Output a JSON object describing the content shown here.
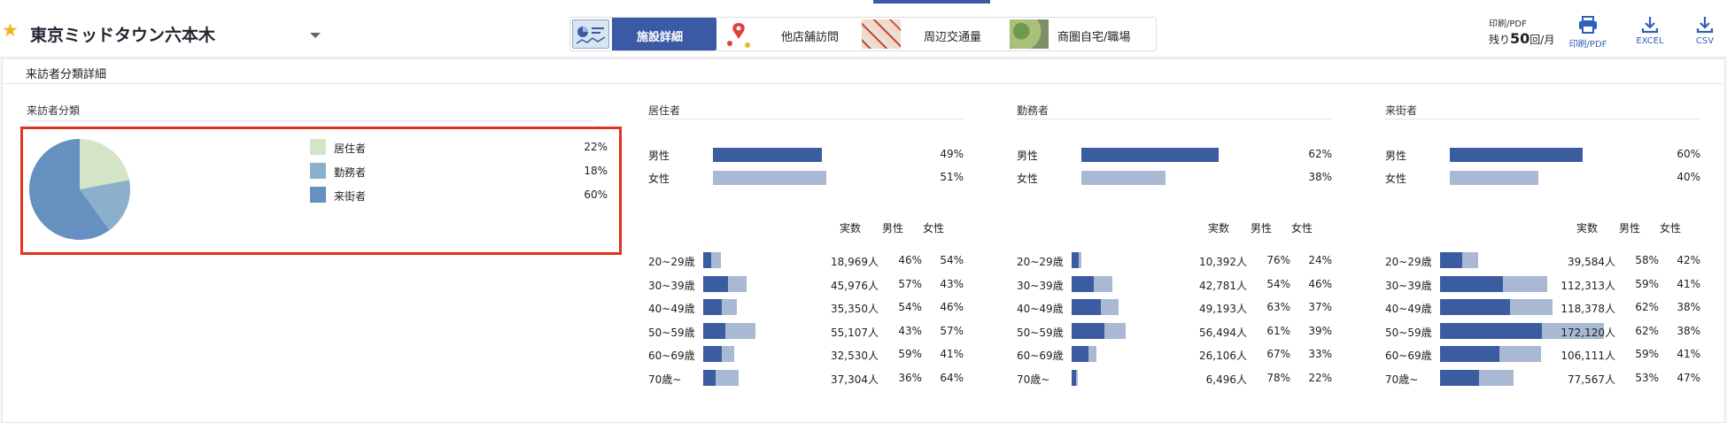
{
  "location": {
    "name": "東京ミッドタウン六本木"
  },
  "tabs": [
    {
      "label": "施設詳細",
      "active": true,
      "icon": "chart-thumbnail-icon"
    },
    {
      "label": "他店舗訪問",
      "active": false,
      "icon": "map-pin-icon"
    },
    {
      "label": "周辺交通量",
      "active": false,
      "icon": "traffic-map-thumbnail-icon"
    },
    {
      "label": "商圏自宅/職場",
      "active": false,
      "icon": "satellite-map-thumbnail-icon"
    }
  ],
  "toolbar": {
    "print_caption": "印刷/PDF",
    "remaining_prefix": "残り",
    "remaining_count": "50",
    "remaining_suffix": "回/月",
    "print_label": "印刷/PDF",
    "excel_label": "EXCEL",
    "csv_label": "CSV"
  },
  "panel": {
    "title": "来訪者分類詳細",
    "classification_title": "来訪者分類"
  },
  "colors": {
    "accent": "#3a5aa5",
    "highlight": "#e0341f",
    "male_bar": "#3b5da0",
    "female_bar": "#a9b8d3"
  },
  "chart_data": {
    "type": "pie",
    "title": "来訪者分類",
    "slices": [
      {
        "label": "居住者",
        "value": 22,
        "pct_label": "22%",
        "color": "#d4e4c6"
      },
      {
        "label": "勤務者",
        "value": 18,
        "pct_label": "18%",
        "color": "#8bb0cb"
      },
      {
        "label": "来街者",
        "value": 60,
        "pct_label": "60%",
        "color": "#6590bf"
      }
    ]
  },
  "groups": [
    {
      "title": "居住者",
      "gender": [
        {
          "label": "男性",
          "value": 49,
          "pct_label": "49%"
        },
        {
          "label": "女性",
          "value": 51,
          "pct_label": "51%"
        }
      ],
      "headers": {
        "count": "実数",
        "male": "男性",
        "female": "女性"
      },
      "ages": [
        {
          "label": "20~29歳",
          "count": "18,969人",
          "count_value": 18969,
          "male": 46,
          "male_label": "46%",
          "female_label": "54%"
        },
        {
          "label": "30~39歳",
          "count": "45,976人",
          "count_value": 45976,
          "male": 57,
          "male_label": "57%",
          "female_label": "43%"
        },
        {
          "label": "40~49歳",
          "count": "35,350人",
          "count_value": 35350,
          "male": 54,
          "male_label": "54%",
          "female_label": "46%"
        },
        {
          "label": "50~59歳",
          "count": "55,107人",
          "count_value": 55107,
          "male": 43,
          "male_label": "43%",
          "female_label": "57%"
        },
        {
          "label": "60~69歳",
          "count": "32,530人",
          "count_value": 32530,
          "male": 59,
          "male_label": "59%",
          "female_label": "41%"
        },
        {
          "label": "70歳~",
          "count": "37,304人",
          "count_value": 37304,
          "male": 36,
          "male_label": "36%",
          "female_label": "64%"
        }
      ]
    },
    {
      "title": "勤務者",
      "gender": [
        {
          "label": "男性",
          "value": 62,
          "pct_label": "62%"
        },
        {
          "label": "女性",
          "value": 38,
          "pct_label": "38%"
        }
      ],
      "headers": {
        "count": "実数",
        "male": "男性",
        "female": "女性"
      },
      "ages": [
        {
          "label": "20~29歳",
          "count": "10,392人",
          "count_value": 10392,
          "male": 76,
          "male_label": "76%",
          "female_label": "24%"
        },
        {
          "label": "30~39歳",
          "count": "42,781人",
          "count_value": 42781,
          "male": 54,
          "male_label": "54%",
          "female_label": "46%"
        },
        {
          "label": "40~49歳",
          "count": "49,193人",
          "count_value": 49193,
          "male": 63,
          "male_label": "63%",
          "female_label": "37%"
        },
        {
          "label": "50~59歳",
          "count": "56,494人",
          "count_value": 56494,
          "male": 61,
          "male_label": "61%",
          "female_label": "39%"
        },
        {
          "label": "60~69歳",
          "count": "26,106人",
          "count_value": 26106,
          "male": 67,
          "male_label": "67%",
          "female_label": "33%"
        },
        {
          "label": "70歳~",
          "count": "6,496人",
          "count_value": 6496,
          "male": 78,
          "male_label": "78%",
          "female_label": "22%"
        }
      ]
    },
    {
      "title": "来街者",
      "gender": [
        {
          "label": "男性",
          "value": 60,
          "pct_label": "60%"
        },
        {
          "label": "女性",
          "value": 40,
          "pct_label": "40%"
        }
      ],
      "headers": {
        "count": "実数",
        "male": "男性",
        "female": "女性"
      },
      "ages": [
        {
          "label": "20~29歳",
          "count": "39,584人",
          "count_value": 39584,
          "male": 58,
          "male_label": "58%",
          "female_label": "42%"
        },
        {
          "label": "30~39歳",
          "count": "112,313人",
          "count_value": 112313,
          "male": 59,
          "male_label": "59%",
          "female_label": "41%"
        },
        {
          "label": "40~49歳",
          "count": "118,378人",
          "count_value": 118378,
          "male": 62,
          "male_label": "62%",
          "female_label": "38%"
        },
        {
          "label": "50~59歳",
          "count": "172,120人",
          "count_value": 172120,
          "male": 62,
          "male_label": "62%",
          "female_label": "38%"
        },
        {
          "label": "60~69歳",
          "count": "106,111人",
          "count_value": 106111,
          "male": 59,
          "male_label": "59%",
          "female_label": "41%"
        },
        {
          "label": "70歳~",
          "count": "77,567人",
          "count_value": 77567,
          "male": 53,
          "male_label": "53%",
          "female_label": "47%"
        }
      ]
    }
  ]
}
